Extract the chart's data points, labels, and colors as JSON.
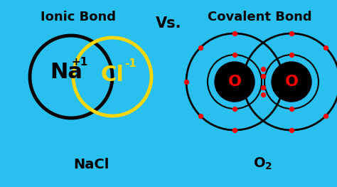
{
  "bg_color": "#29BFEF",
  "title_ionic": "Ionic Bond",
  "title_covalent": "Covalent Bond",
  "vs_text": "Vs.",
  "label_nacl": "NaCl",
  "label_o2": "O₂",
  "na_label": "Na",
  "na_charge": "+1",
  "cl_label": "Cl",
  "cl_charge": "-1",
  "o_label": "O",
  "black_circle_color": "black",
  "yellow_circle_color": "#FFD700",
  "red_dot_color": "red",
  "text_color": "black",
  "title_fontsize": 13,
  "vs_fontsize": 15,
  "label_fontsize": 14,
  "na_fontsize": 22,
  "cl_fontsize": 22,
  "charge_fontsize": 11,
  "o_fontsize": 16
}
